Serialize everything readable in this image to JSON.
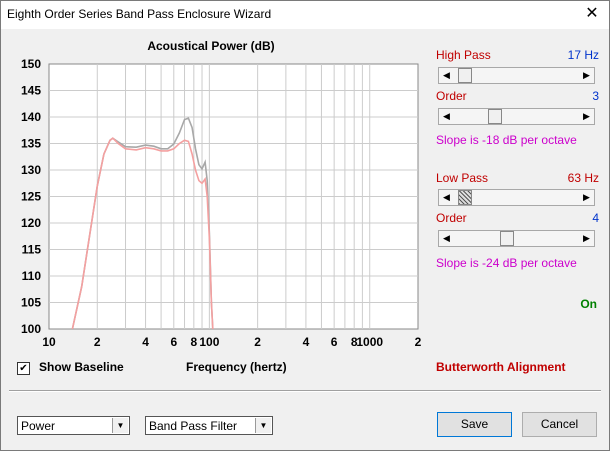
{
  "window": {
    "title": "Eighth Order Series Band Pass Enclosure Wizard",
    "close_symbol": "✕"
  },
  "chart_data": {
    "type": "line",
    "title": "Acoustical Power (dB)",
    "xlabel": "Frequency (hertz)",
    "ylabel": "",
    "x_scale": "log",
    "xlim": [
      10,
      2000
    ],
    "ylim": [
      100,
      150
    ],
    "x_ticks": [
      10,
      20,
      40,
      60,
      80,
      100,
      200,
      400,
      600,
      800,
      1000,
      2000
    ],
    "x_tick_labels": [
      "10",
      "2",
      "4",
      "6",
      "8",
      "100",
      "2",
      "4",
      "6",
      "8",
      "1000",
      "2"
    ],
    "y_ticks": [
      100,
      105,
      110,
      115,
      120,
      125,
      130,
      135,
      140,
      145,
      150
    ],
    "y_tick_labels": [
      "100",
      "105",
      "110",
      "115",
      "120",
      "125",
      "130",
      "135",
      "140",
      "145",
      "150"
    ],
    "grid": true,
    "series": [
      {
        "color": "#a8a8a8",
        "points": [
          [
            14,
            100
          ],
          [
            16,
            108
          ],
          [
            18,
            118
          ],
          [
            20,
            127
          ],
          [
            22,
            133
          ],
          [
            24,
            135.6
          ],
          [
            25,
            136
          ],
          [
            27,
            135.3
          ],
          [
            30,
            134.4
          ],
          [
            35,
            134.3
          ],
          [
            40,
            134.7
          ],
          [
            45,
            134.5
          ],
          [
            50,
            134
          ],
          [
            55,
            134
          ],
          [
            60,
            134.9
          ],
          [
            65,
            137
          ],
          [
            70,
            139.5
          ],
          [
            74,
            139.8
          ],
          [
            78,
            138
          ],
          [
            82,
            134
          ],
          [
            86,
            131
          ],
          [
            90,
            130.2
          ],
          [
            94,
            131.5
          ],
          [
            97,
            128
          ],
          [
            100,
            118
          ],
          [
            103,
            105
          ],
          [
            105,
            100
          ]
        ]
      },
      {
        "color": "#f4a0a0",
        "points": [
          [
            14,
            100
          ],
          [
            16,
            108
          ],
          [
            18,
            118
          ],
          [
            20,
            127
          ],
          [
            22,
            133
          ],
          [
            24,
            135.6
          ],
          [
            25,
            136
          ],
          [
            27,
            135
          ],
          [
            30,
            134
          ],
          [
            35,
            133.8
          ],
          [
            40,
            134.2
          ],
          [
            45,
            134
          ],
          [
            50,
            133.6
          ],
          [
            55,
            133.6
          ],
          [
            60,
            134
          ],
          [
            65,
            135
          ],
          [
            70,
            135.6
          ],
          [
            74,
            135.4
          ],
          [
            78,
            133
          ],
          [
            82,
            130
          ],
          [
            86,
            128
          ],
          [
            90,
            127.5
          ],
          [
            94,
            128.3
          ],
          [
            97,
            125
          ],
          [
            100,
            117
          ],
          [
            103,
            105
          ],
          [
            105,
            100
          ]
        ]
      }
    ]
  },
  "panel": {
    "high_pass": {
      "label": "High Pass",
      "value": "17 Hz",
      "level": 0.04
    },
    "high_order": {
      "label": "Order",
      "value": "3",
      "level": 0.31
    },
    "high_slope": "Slope is -18 dB per octave",
    "low_pass": {
      "label": "Low Pass",
      "value": "63 Hz",
      "level": 0.04
    },
    "low_order": {
      "label": "Order",
      "value": "4",
      "level": 0.41
    },
    "low_slope": "Slope is -24 dB per octave",
    "status": "On",
    "alignment": "Butterworth Alignment"
  },
  "controls": {
    "show_baseline_label": "Show Baseline",
    "show_baseline_checked": true,
    "check_mark": "✔",
    "plot_select": "Power",
    "filter_select": "Band Pass Filter",
    "save_label": "Save",
    "cancel_label": "Cancel",
    "arrow_left": "◀",
    "arrow_right": "▶",
    "arrow_down": "▼"
  },
  "colors": {
    "grid": "#cccccc",
    "plot_bg": "#ffffff",
    "accent_red": "#c00000",
    "accent_blue": "#0033cc"
  }
}
